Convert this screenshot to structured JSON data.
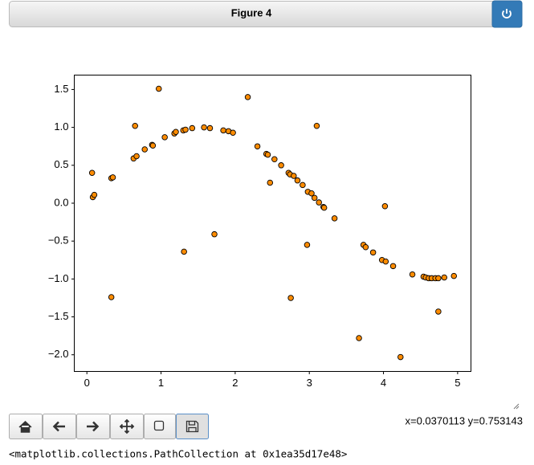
{
  "window": {
    "title": "Figure 4",
    "status": "x=0.0370113 y=0.753143"
  },
  "output": "<matplotlib.collections.PathCollection at 0x1ea35d17e48>",
  "chart_data": {
    "type": "scatter",
    "x": [
      0.08,
      0.1,
      0.07,
      0.33,
      0.35,
      0.33,
      0.63,
      0.67,
      0.65,
      0.78,
      0.88,
      0.89,
      0.97,
      1.05,
      1.18,
      1.2,
      1.31,
      1.3,
      1.33,
      1.42,
      1.58,
      1.66,
      1.72,
      1.84,
      1.91,
      1.97,
      2.17,
      2.3,
      2.42,
      2.44,
      2.47,
      2.53,
      2.62,
      2.72,
      2.74,
      2.79,
      2.84,
      2.91,
      2.75,
      2.97,
      2.98,
      3.03,
      3.07,
      3.1,
      3.13,
      3.19,
      3.2,
      3.34,
      3.67,
      3.73,
      3.76,
      3.86,
      3.98,
      4.03,
      4.02,
      4.13,
      4.23,
      4.39,
      4.54,
      4.57,
      4.61,
      4.65,
      4.7,
      4.74,
      4.74,
      4.82,
      4.95
    ],
    "values": [
      0.08,
      0.11,
      0.4,
      0.33,
      0.34,
      -1.24,
      0.59,
      0.62,
      1.02,
      0.71,
      0.77,
      0.76,
      1.51,
      0.87,
      0.92,
      0.94,
      -0.64,
      0.96,
      0.97,
      0.99,
      1.0,
      0.99,
      -0.41,
      0.96,
      0.95,
      0.93,
      1.4,
      0.75,
      0.65,
      0.64,
      0.27,
      0.58,
      0.5,
      0.4,
      0.38,
      0.36,
      0.3,
      0.24,
      -1.25,
      -0.55,
      0.15,
      0.13,
      0.07,
      1.02,
      0.01,
      -0.05,
      -0.06,
      -0.2,
      -1.78,
      -0.55,
      -0.58,
      -0.65,
      -0.75,
      -0.77,
      -0.04,
      -0.83,
      -2.03,
      -0.94,
      -0.97,
      -0.98,
      -0.99,
      -0.99,
      -0.99,
      -0.99,
      -1.43,
      -0.98,
      -0.96
    ],
    "color": "#ff8c00",
    "edgecolor": "#000000",
    "xlim": [
      -0.17,
      5.18
    ],
    "ylim": [
      -2.22,
      1.69
    ],
    "xticks": [
      0,
      1,
      2,
      3,
      4,
      5
    ],
    "yticks": [
      {
        "value": 1.5,
        "label": "1.5"
      },
      {
        "value": 1,
        "label": "1.0"
      },
      {
        "value": 0.5,
        "label": "0.5"
      },
      {
        "value": 0,
        "label": "0.0"
      },
      {
        "value": -0.5,
        "label": "−0.5"
      },
      {
        "value": -1,
        "label": "−1.0"
      },
      {
        "value": -1.5,
        "label": "−1.5"
      },
      {
        "value": -2,
        "label": "−2.0"
      }
    ]
  }
}
